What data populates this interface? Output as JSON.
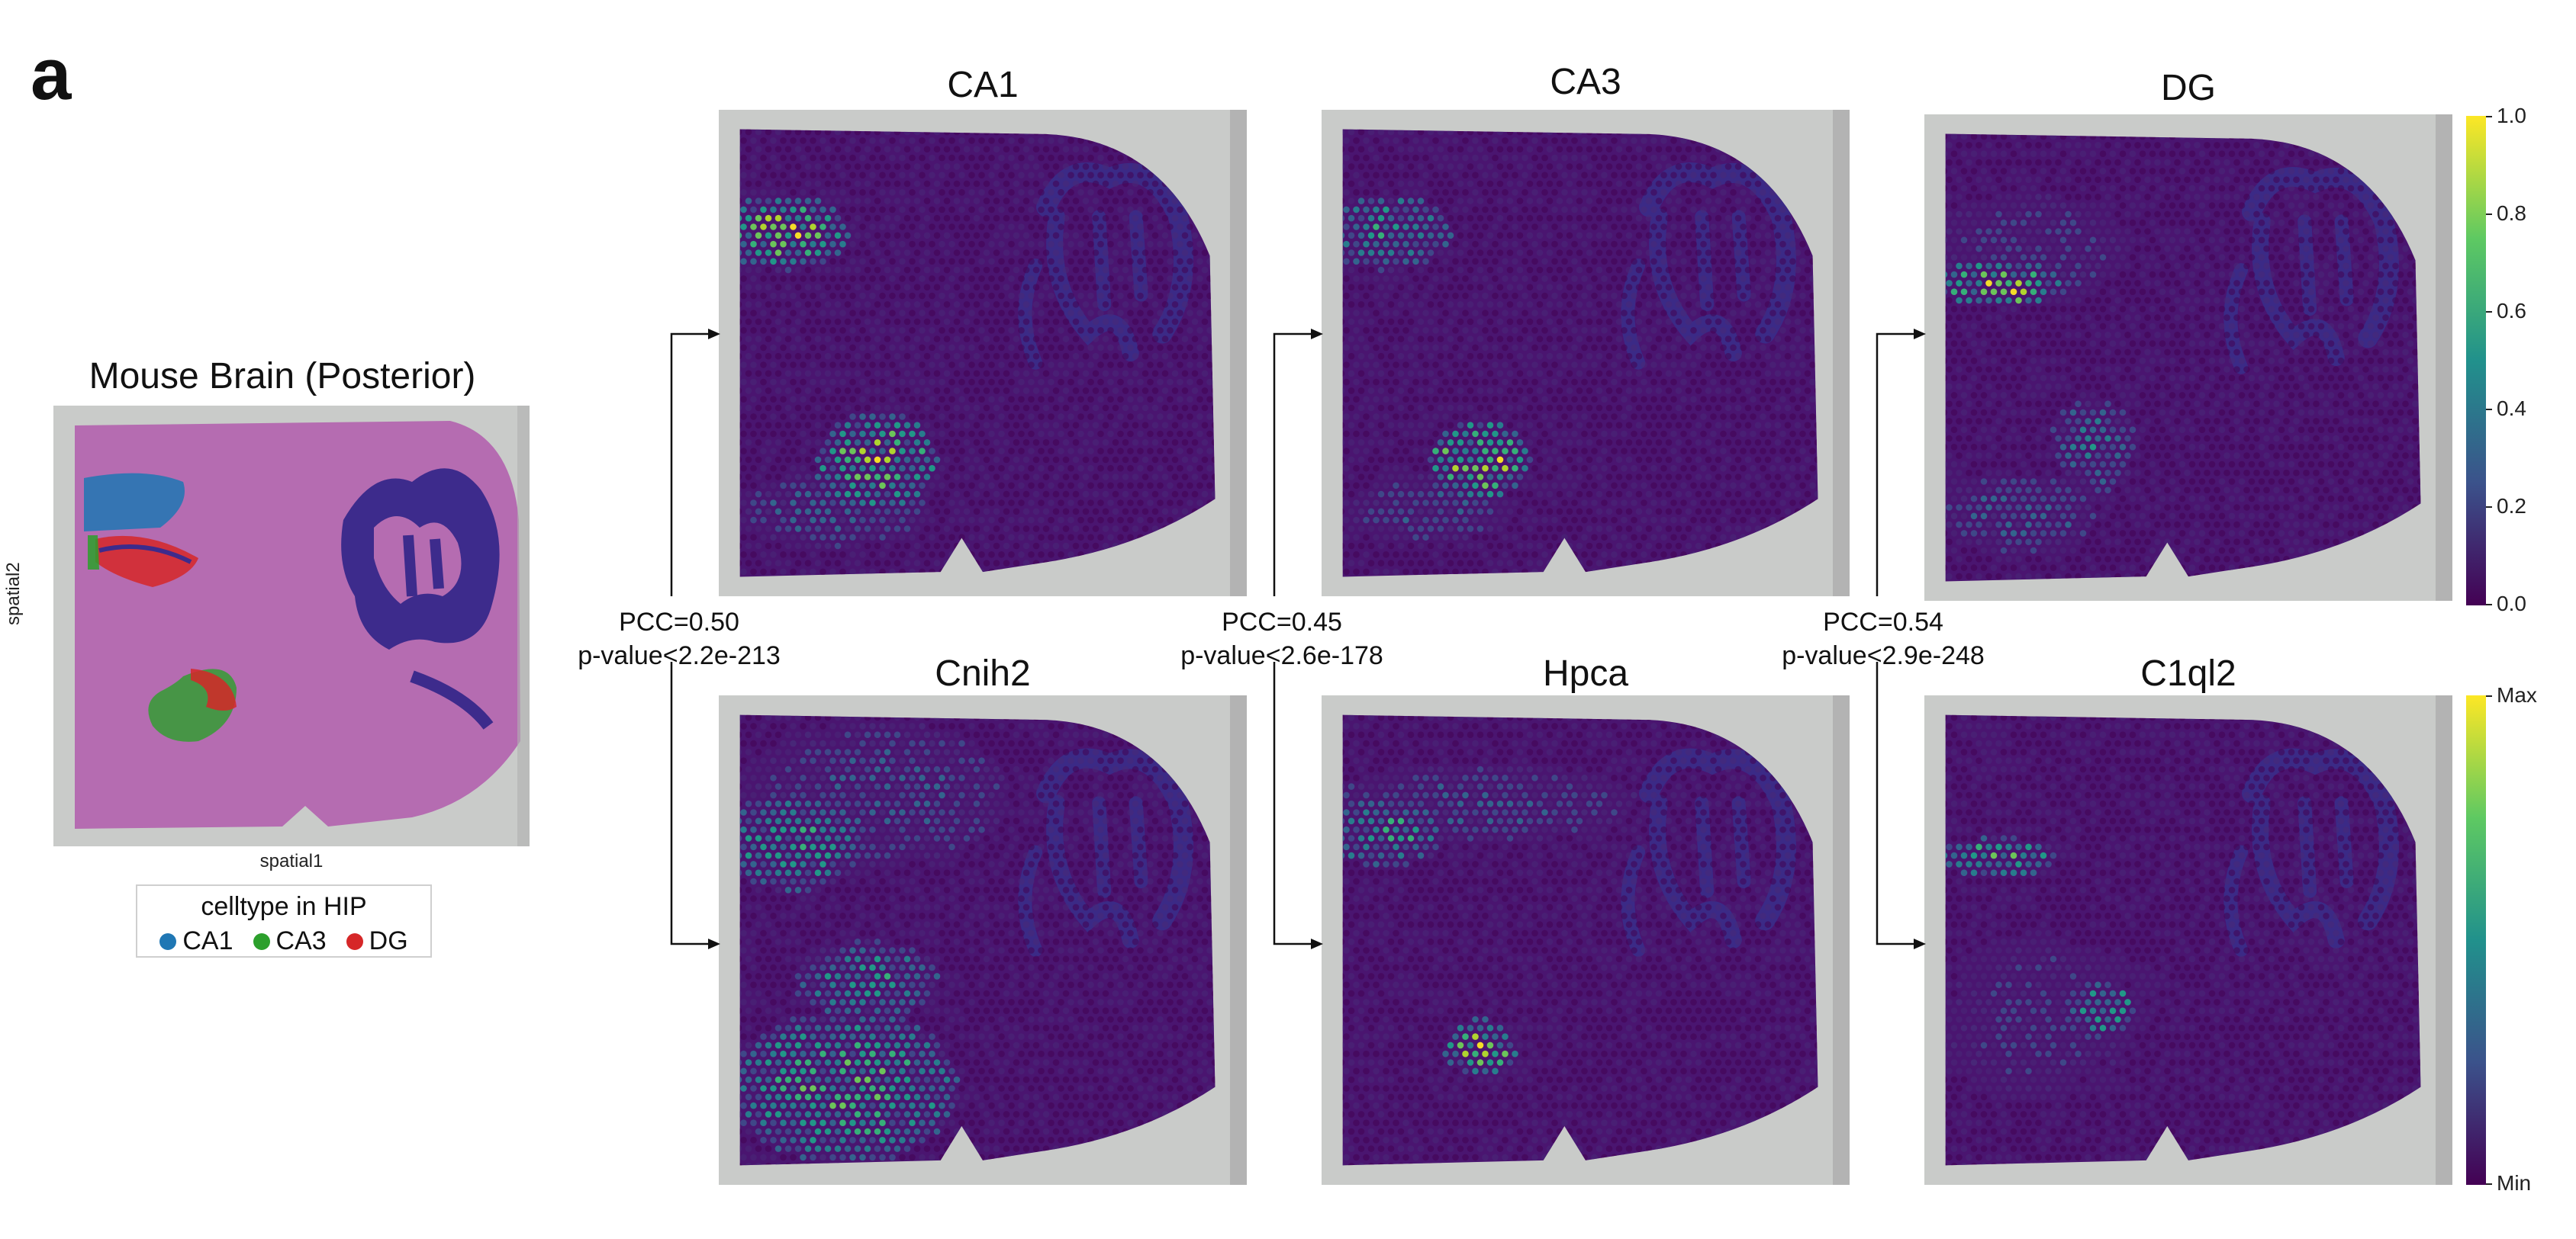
{
  "panel_label": "a",
  "overview": {
    "title": "Mouse Brain (Posterior)",
    "xlabel": "spatial1",
    "ylabel": "spatial2",
    "legend": {
      "title": "celltype in HIP",
      "items": [
        {
          "label": "CA1",
          "color": "#1f77b4"
        },
        {
          "label": "CA3",
          "color": "#2ca02c"
        },
        {
          "label": "DG",
          "color": "#d62728"
        }
      ]
    }
  },
  "pairs": [
    {
      "top_title": "CA1",
      "bottom_title": "Cnih2",
      "pcc": "PCC=0.50",
      "pvalue": "p-value<2.2e-213"
    },
    {
      "top_title": "CA3",
      "bottom_title": "Hpca",
      "pcc": "PCC=0.45",
      "pvalue": "p-value<2.6e-178"
    },
    {
      "top_title": "DG",
      "bottom_title": "C1ql2",
      "pcc": "PCC=0.54",
      "pvalue": "p-value<2.9e-248"
    }
  ],
  "colorbar_top": {
    "colormap": "viridis",
    "ticks": [
      "1.0",
      "0.8",
      "0.6",
      "0.4",
      "0.2",
      "0.0"
    ]
  },
  "colorbar_bottom": {
    "colormap": "viridis",
    "max_label": "Max",
    "min_label": "Min"
  },
  "colors": {
    "tissue_bg": "#4a1570",
    "dark_region": "#3b2a86",
    "slide_gray": "#c9cbc9",
    "overview_tissue": "#b56cb1"
  }
}
